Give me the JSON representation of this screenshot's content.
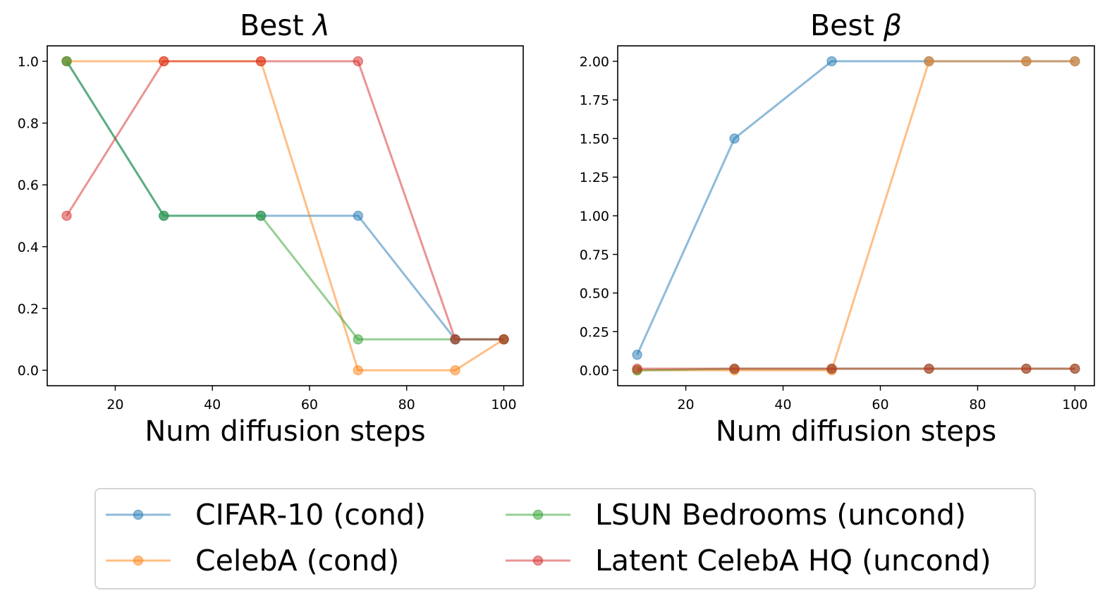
{
  "chart_data": [
    {
      "type": "line",
      "title": "Best λ",
      "title_text": "Best ",
      "title_symbol": "λ",
      "xlabel": "Num diffusion steps",
      "ylabel": "",
      "x": [
        10,
        30,
        50,
        70,
        90,
        100
      ],
      "xlim": [
        6,
        104
      ],
      "ylim": [
        -0.05,
        1.05
      ],
      "xticks": [
        "20",
        "40",
        "60",
        "80",
        "100"
      ],
      "xtick_values": [
        20,
        40,
        60,
        80,
        100
      ],
      "yticks": [
        "0.0",
        "0.2",
        "0.4",
        "0.6",
        "0.8",
        "1.0"
      ],
      "ytick_values": [
        0.0,
        0.2,
        0.4,
        0.6,
        0.8,
        1.0
      ],
      "series": [
        {
          "name": "CIFAR-10 (cond)",
          "values": [
            1.0,
            0.5,
            0.5,
            0.5,
            0.1,
            0.1
          ]
        },
        {
          "name": "CelebA (cond)",
          "values": [
            1.0,
            1.0,
            1.0,
            0.0,
            0.0,
            0.1
          ]
        },
        {
          "name": "LSUN Bedrooms (uncond)",
          "values": [
            1.0,
            0.5,
            0.5,
            0.1,
            0.1,
            0.1
          ]
        },
        {
          "name": "Latent CelebA HQ (uncond)",
          "values": [
            0.5,
            1.0,
            1.0,
            1.0,
            0.1,
            0.1
          ]
        }
      ]
    },
    {
      "type": "line",
      "title": "Best β",
      "title_text": "Best ",
      "title_symbol": "β",
      "xlabel": "Num diffusion steps",
      "ylabel": "",
      "x": [
        10,
        30,
        50,
        70,
        90,
        100
      ],
      "xlim": [
        6,
        104
      ],
      "ylim": [
        -0.1,
        2.1
      ],
      "xticks": [
        "20",
        "40",
        "60",
        "80",
        "100"
      ],
      "xtick_values": [
        20,
        40,
        60,
        80,
        100
      ],
      "yticks": [
        "0.00",
        "0.25",
        "0.50",
        "0.75",
        "1.00",
        "1.25",
        "1.50",
        "1.75",
        "2.00"
      ],
      "ytick_values": [
        0.0,
        0.25,
        0.5,
        0.75,
        1.0,
        1.25,
        1.5,
        1.75,
        2.0
      ],
      "series": [
        {
          "name": "CIFAR-10 (cond)",
          "values": [
            0.1,
            1.5,
            2.0,
            2.0,
            2.0,
            2.0
          ]
        },
        {
          "name": "CelebA (cond)",
          "values": [
            0.0,
            0.0,
            0.0,
            2.0,
            2.0,
            2.0
          ]
        },
        {
          "name": "LSUN Bedrooms (uncond)",
          "values": [
            0.0,
            0.01,
            0.01,
            0.01,
            0.01,
            0.01
          ]
        },
        {
          "name": "Latent CelebA HQ (uncond)",
          "values": [
            0.01,
            0.01,
            0.01,
            0.01,
            0.01,
            0.01
          ]
        }
      ]
    }
  ],
  "legend": {
    "placement": "bottom-center",
    "entries": [
      {
        "label": "CIFAR-10 (cond)",
        "color": "#1f77b4"
      },
      {
        "label": "CelebA (cond)",
        "color": "#ff7f0e"
      },
      {
        "label": "LSUN Bedrooms (uncond)",
        "color": "#2ca02c"
      },
      {
        "label": "Latent CelebA HQ (uncond)",
        "color": "#d62728"
      }
    ]
  },
  "colors": [
    "#1f77b4",
    "#ff7f0e",
    "#2ca02c",
    "#d62728"
  ]
}
